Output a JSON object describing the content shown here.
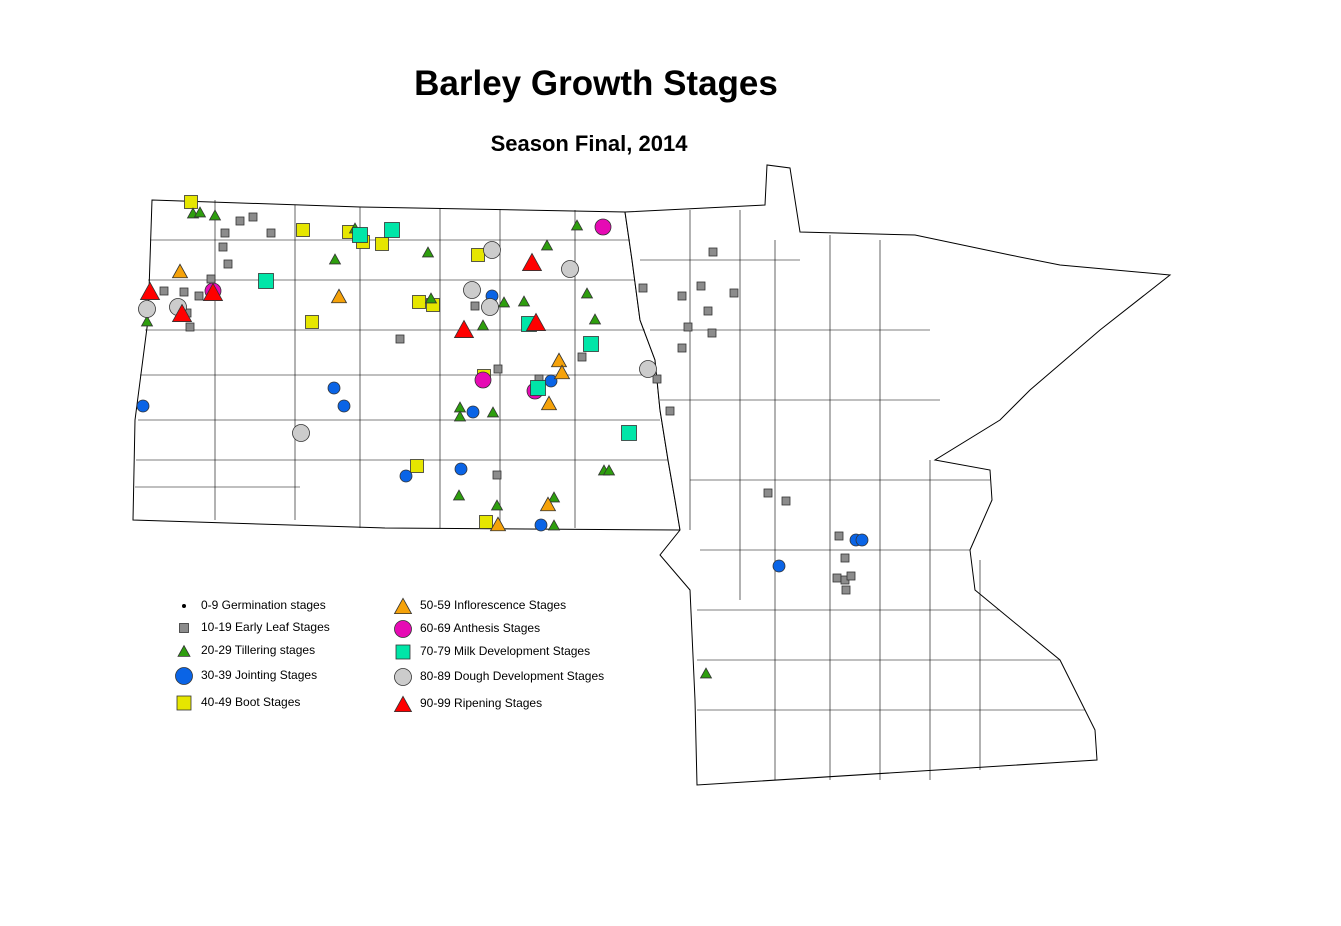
{
  "title": "Barley Growth Stages",
  "subtitle": "Season Final, 2014",
  "legend": [
    {
      "key": "germination",
      "label": "0-9 Germination stages",
      "shape": "dot",
      "color": "#000000"
    },
    {
      "key": "early_leaf",
      "label": "10-19 Early Leaf Stages",
      "shape": "square",
      "color": "#8c8c8c"
    },
    {
      "key": "tillering",
      "label": "20-29 Tillering stages",
      "shape": "triangle",
      "color": "#2e9e0e"
    },
    {
      "key": "jointing",
      "label": "30-39 Jointing Stages",
      "shape": "circle",
      "color": "#0a64e6"
    },
    {
      "key": "boot",
      "label": "40-49 Boot Stages",
      "shape": "square",
      "color": "#e6e600"
    },
    {
      "key": "inflorescence",
      "label": "50-59 Inflorescence Stages",
      "shape": "triangle",
      "color": "#f5a20a"
    },
    {
      "key": "anthesis",
      "label": "60-69 Anthesis Stages",
      "shape": "circle",
      "color": "#e60ab4"
    },
    {
      "key": "milk",
      "label": "70-79 Milk Development Stages",
      "shape": "square",
      "color": "#00e6a8"
    },
    {
      "key": "dough",
      "label": "80-89 Dough Development Stages",
      "shape": "circle",
      "color": "#cccccc"
    },
    {
      "key": "ripening",
      "label": "90-99 Ripening Stages",
      "shape": "triangle",
      "color": "#ff0000"
    }
  ]
}
